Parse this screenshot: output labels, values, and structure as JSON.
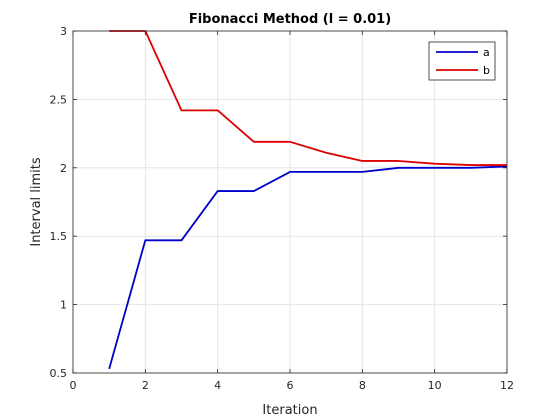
{
  "chart_data": {
    "type": "line",
    "title": "Fibonacci Method (l = 0.01)",
    "xlabel": "Iteration",
    "ylabel": "Interval limits",
    "xlim": [
      0,
      12
    ],
    "ylim": [
      0.5,
      3
    ],
    "xticks": [
      0,
      2,
      4,
      6,
      8,
      10,
      12
    ],
    "yticks": [
      0.5,
      1,
      1.5,
      2,
      2.5,
      3
    ],
    "xtick_labels": [
      "0",
      "2",
      "4",
      "6",
      "8",
      "10",
      "12"
    ],
    "ytick_labels": [
      "0.5",
      "1",
      "1.5",
      "2",
      "2.5",
      "3"
    ],
    "grid": true,
    "legend_position": "top-right",
    "x": [
      1,
      2,
      3,
      4,
      5,
      6,
      7,
      8,
      9,
      10,
      11,
      12
    ],
    "series": [
      {
        "name": "a",
        "color": "#0000cc",
        "values": [
          0.53,
          1.47,
          1.47,
          1.83,
          1.83,
          1.97,
          1.97,
          1.97,
          2.0,
          2.0,
          2.0,
          2.01
        ]
      },
      {
        "name": "b",
        "color": "#dd0000",
        "values": [
          3.0,
          3.0,
          2.42,
          2.42,
          2.19,
          2.19,
          2.11,
          2.05,
          2.05,
          2.03,
          2.02,
          2.02
        ]
      }
    ]
  }
}
